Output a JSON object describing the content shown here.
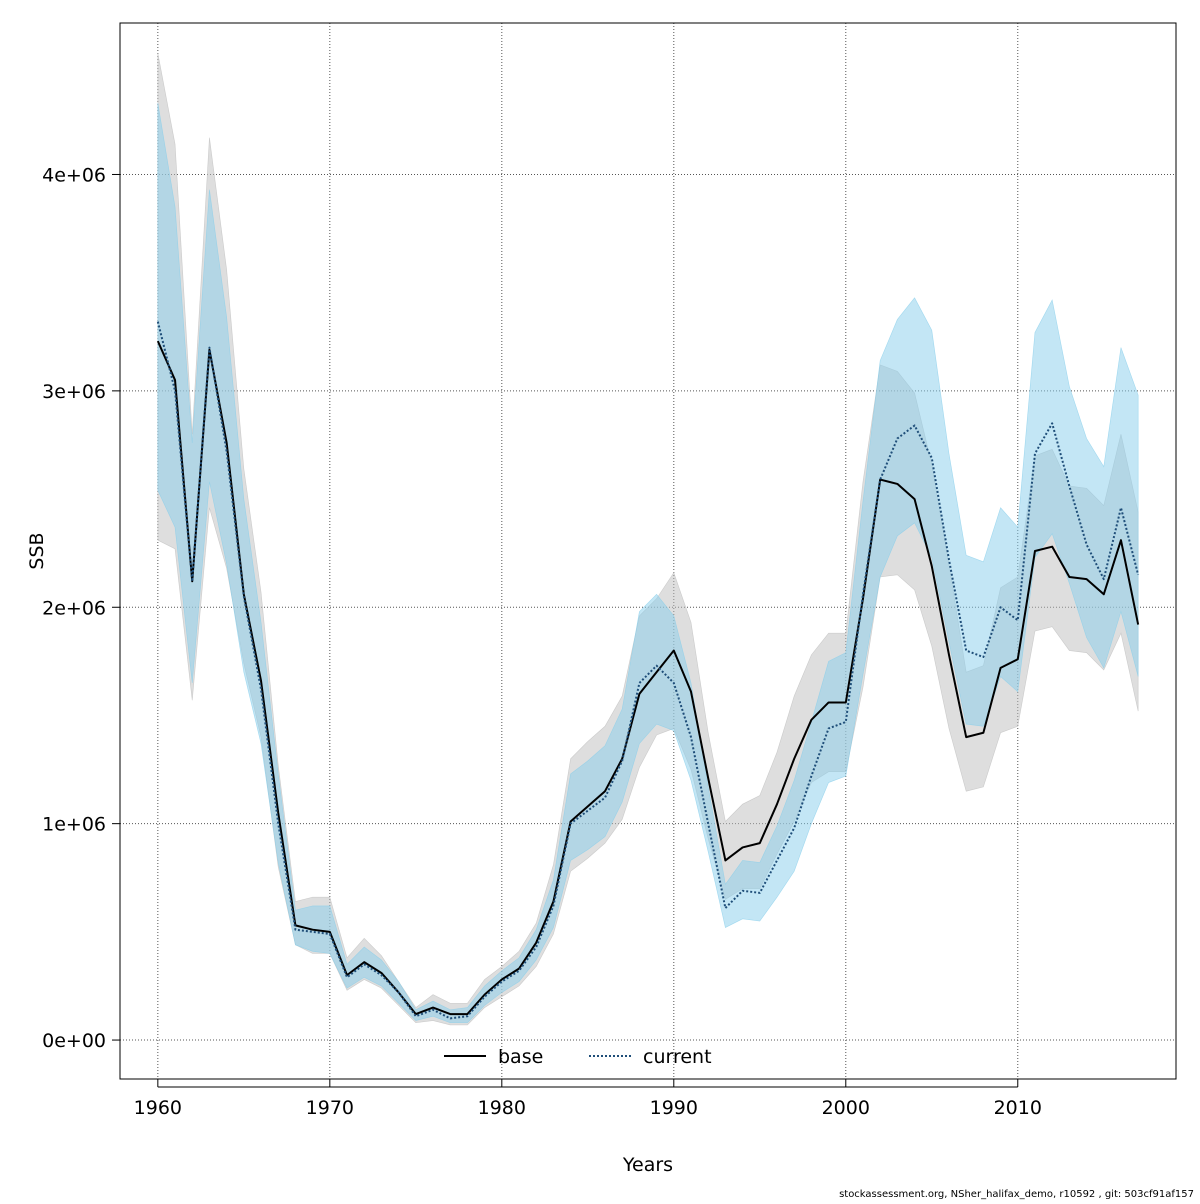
{
  "chart_data": {
    "type": "line",
    "xlabel": "Years",
    "ylabel": "SSB",
    "xlim": [
      1957.8,
      2019.2
    ],
    "ylim": [
      -180000,
      4700000
    ],
    "x_ticks": [
      1960,
      1970,
      1980,
      1990,
      2000,
      2010
    ],
    "x_tick_labels": [
      "1960",
      "1970",
      "1980",
      "1990",
      "2000",
      "2010"
    ],
    "y_ticks": [
      0,
      1000000,
      2000000,
      3000000,
      4000000
    ],
    "y_tick_labels": [
      "0e+00",
      "1e+06",
      "2e+06",
      "3e+06",
      "4e+06"
    ],
    "grid": true,
    "legend_position": "bottom-center",
    "years": [
      1960,
      1961,
      1962,
      1963,
      1964,
      1965,
      1966,
      1967,
      1968,
      1969,
      1970,
      1971,
      1972,
      1973,
      1974,
      1975,
      1976,
      1977,
      1978,
      1979,
      1980,
      1981,
      1982,
      1983,
      1984,
      1985,
      1986,
      1987,
      1988,
      1989,
      1990,
      1991,
      1992,
      1993,
      1994,
      1995,
      1996,
      1997,
      1998,
      1999,
      2000,
      2001,
      2002,
      2003,
      2004,
      2005,
      2006,
      2007,
      2008,
      2009,
      2010,
      2011,
      2012,
      2013,
      2014,
      2015,
      2016,
      2017
    ],
    "series": [
      {
        "name": "base",
        "color": "#000000",
        "band_color": "#bebebe",
        "line_style": "solid",
        "values": [
          3230000,
          3050000,
          2120000,
          3190000,
          2760000,
          2060000,
          1660000,
          1050000,
          530000,
          510000,
          500000,
          300000,
          360000,
          310000,
          220000,
          120000,
          150000,
          120000,
          120000,
          210000,
          280000,
          330000,
          450000,
          640000,
          1010000,
          1080000,
          1150000,
          1300000,
          1600000,
          1700000,
          1800000,
          1610000,
          1210000,
          830000,
          890000,
          910000,
          1090000,
          1300000,
          1480000,
          1560000,
          1560000,
          2040000,
          2590000,
          2570000,
          2500000,
          2190000,
          1780000,
          1400000,
          1420000,
          1720000,
          1760000,
          2260000,
          2280000,
          2140000,
          2130000,
          2060000,
          2310000,
          1920000
        ],
        "lower": [
          2310000,
          2270000,
          1570000,
          2460000,
          2180000,
          1740000,
          1400000,
          800000,
          440000,
          400000,
          400000,
          230000,
          280000,
          240000,
          160000,
          80000,
          90000,
          70000,
          70000,
          150000,
          200000,
          250000,
          340000,
          490000,
          780000,
          840000,
          910000,
          1020000,
          1260000,
          1410000,
          1440000,
          1250000,
          930000,
          650000,
          700000,
          700000,
          860000,
          1010000,
          1190000,
          1240000,
          1240000,
          1630000,
          2140000,
          2150000,
          2080000,
          1820000,
          1440000,
          1150000,
          1170000,
          1420000,
          1450000,
          1890000,
          1910000,
          1800000,
          1790000,
          1710000,
          1880000,
          1520000
        ],
        "upper": [
          4560000,
          4140000,
          2800000,
          4170000,
          3560000,
          2640000,
          2070000,
          1270000,
          640000,
          660000,
          660000,
          380000,
          470000,
          390000,
          270000,
          150000,
          210000,
          170000,
          170000,
          280000,
          340000,
          410000,
          540000,
          810000,
          1300000,
          1380000,
          1450000,
          1590000,
          1960000,
          2040000,
          2160000,
          1930000,
          1420000,
          1010000,
          1090000,
          1130000,
          1330000,
          1590000,
          1780000,
          1880000,
          1880000,
          2580000,
          3120000,
          3090000,
          2990000,
          2660000,
          2200000,
          1700000,
          1730000,
          2090000,
          2140000,
          2700000,
          2730000,
          2560000,
          2550000,
          2470000,
          2800000,
          2440000
        ]
      },
      {
        "name": "current",
        "color": "#1f4e79",
        "band_color": "#87ceeb",
        "line_style": "dotted",
        "values": [
          3320000,
          3000000,
          2120000,
          3200000,
          2720000,
          2050000,
          1620000,
          1000000,
          510000,
          500000,
          490000,
          290000,
          350000,
          300000,
          220000,
          110000,
          140000,
          100000,
          110000,
          200000,
          270000,
          320000,
          430000,
          620000,
          1000000,
          1060000,
          1120000,
          1290000,
          1650000,
          1730000,
          1650000,
          1400000,
          1000000,
          610000,
          690000,
          680000,
          830000,
          980000,
          1220000,
          1440000,
          1470000,
          2060000,
          2590000,
          2780000,
          2840000,
          2690000,
          2220000,
          1800000,
          1770000,
          2000000,
          1940000,
          2710000,
          2850000,
          2560000,
          2290000,
          2130000,
          2460000,
          2150000
        ],
        "lower": [
          2540000,
          2370000,
          1650000,
          2580000,
          2200000,
          1700000,
          1370000,
          820000,
          440000,
          410000,
          400000,
          240000,
          290000,
          250000,
          170000,
          90000,
          110000,
          80000,
          80000,
          160000,
          220000,
          270000,
          370000,
          520000,
          830000,
          880000,
          940000,
          1100000,
          1370000,
          1460000,
          1430000,
          1200000,
          870000,
          520000,
          560000,
          550000,
          660000,
          780000,
          1000000,
          1190000,
          1220000,
          1690000,
          2140000,
          2330000,
          2390000,
          2230000,
          1840000,
          1460000,
          1450000,
          1680000,
          1610000,
          2230000,
          2340000,
          2110000,
          1860000,
          1720000,
          1980000,
          1680000
        ],
        "upper": [
          4330000,
          3850000,
          2760000,
          3930000,
          3340000,
          2500000,
          1930000,
          1230000,
          600000,
          620000,
          620000,
          350000,
          430000,
          370000,
          270000,
          140000,
          180000,
          140000,
          150000,
          250000,
          320000,
          380000,
          510000,
          740000,
          1230000,
          1290000,
          1360000,
          1530000,
          1980000,
          2060000,
          1960000,
          1650000,
          1170000,
          720000,
          830000,
          820000,
          990000,
          1200000,
          1470000,
          1750000,
          1790000,
          2490000,
          3140000,
          3330000,
          3430000,
          3280000,
          2710000,
          2240000,
          2210000,
          2460000,
          2370000,
          3270000,
          3420000,
          3020000,
          2780000,
          2650000,
          3200000,
          2980000
        ]
      }
    ]
  },
  "legend": {
    "items": [
      {
        "label": "base"
      },
      {
        "label": "current"
      }
    ]
  },
  "footer_note": "stockassessment.org, NSher_halifax_demo, r10592 , git: 503cf91af157"
}
